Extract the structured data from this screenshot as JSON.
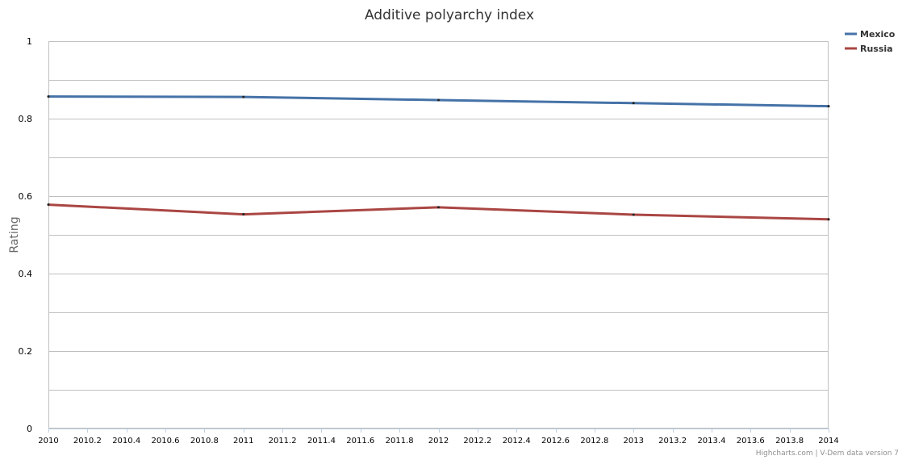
{
  "chart_data": {
    "type": "line",
    "title": "Additive polyarchy index",
    "xlabel": "",
    "ylabel": "Rating",
    "xlim": [
      2010,
      2014
    ],
    "ylim": [
      0,
      1
    ],
    "x_ticks": [
      "2010",
      "2010.2",
      "2010.4",
      "2010.6",
      "2010.8",
      "2011",
      "2011.2",
      "2011.4",
      "2011.6",
      "2011.8",
      "2012",
      "2012.2",
      "2012.4",
      "2012.6",
      "2012.8",
      "2013",
      "2013.2",
      "2013.4",
      "2013.6",
      "2013.8",
      "2014"
    ],
    "y_ticks": [
      "0",
      "0.2",
      "0.4",
      "0.6",
      "0.8",
      "1"
    ],
    "grid": true,
    "legend_position": "top-right",
    "x": [
      2010,
      2011,
      2012,
      2013,
      2014
    ],
    "series": [
      {
        "name": "Mexico",
        "color": "#4572a7",
        "values": [
          0.857,
          0.856,
          0.848,
          0.84,
          0.832
        ]
      },
      {
        "name": "Russia",
        "color": "#aa4643",
        "values": [
          0.578,
          0.553,
          0.571,
          0.552,
          0.54
        ]
      }
    ]
  },
  "credits": "Highcharts.com | V-Dem data version 7"
}
